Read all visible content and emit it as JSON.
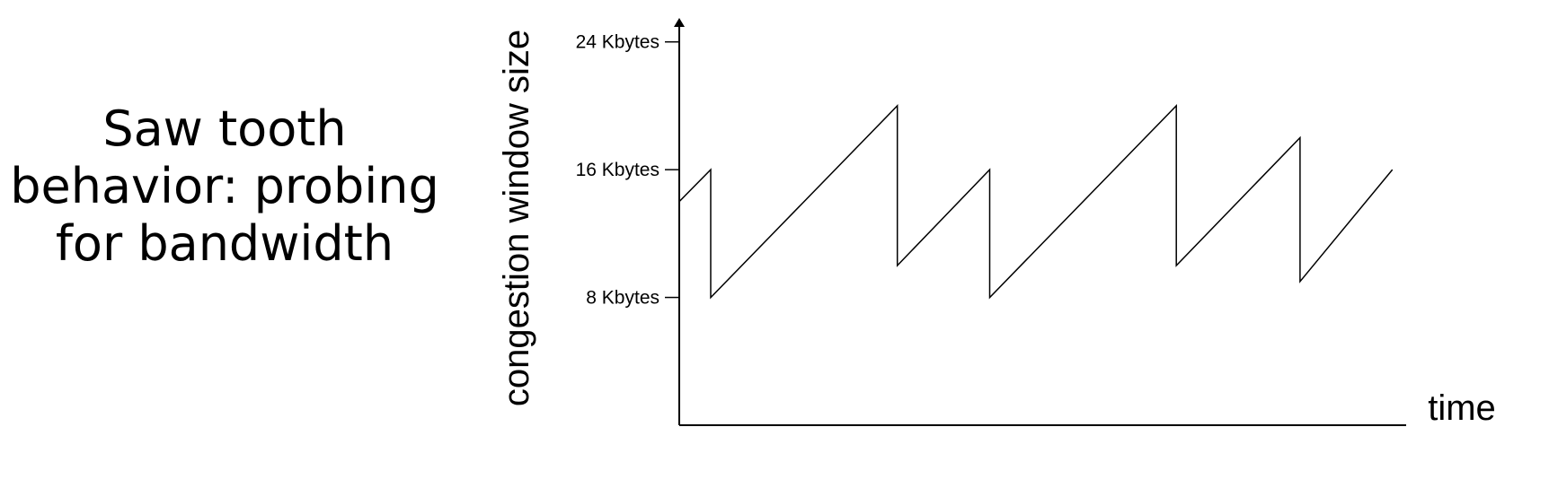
{
  "caption": {
    "lines": [
      "Saw tooth",
      "behavior: probing",
      "for bandwidth"
    ]
  },
  "chart_data": {
    "type": "line",
    "title": "",
    "xlabel": "time",
    "ylabel": "congestion window size",
    "ylim": [
      0,
      25.5
    ],
    "y_ticks": [
      {
        "value": 8,
        "label": "8 Kbytes"
      },
      {
        "value": 16,
        "label": "16 Kbytes"
      },
      {
        "value": 24,
        "label": "24 Kbytes"
      }
    ],
    "x_ticks": [],
    "grid": false,
    "legend": "none",
    "series": [
      {
        "x": [
          0,
          3.2,
          3.2,
          22.2,
          22.2,
          31.6,
          31.6,
          50.6,
          50.6,
          63.2,
          63.2,
          72.6
        ],
        "y": [
          14,
          16,
          8,
          20,
          10,
          16,
          8,
          20,
          10,
          18,
          9,
          16
        ]
      }
    ],
    "xlim": [
      0,
      74
    ],
    "color": "#000000"
  }
}
